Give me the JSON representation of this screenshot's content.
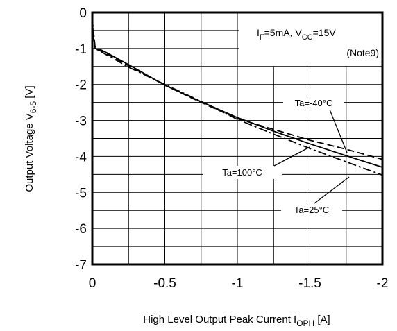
{
  "chart_data": {
    "type": "line",
    "xlim": [
      0,
      -2
    ],
    "ylim": [
      0,
      -7
    ],
    "x_ticks": [
      "0",
      "-0.5",
      "-1",
      "-1.5",
      "-2"
    ],
    "y_ticks": [
      "0",
      "-1",
      "-2",
      "-3",
      "-4",
      "-5",
      "-6",
      "-7"
    ],
    "xlabel": {
      "main": "High Level Output Peak Current I",
      "sub": "OPH",
      "unit": " [A]"
    },
    "ylabel": {
      "main": "Output Voltage V",
      "sub": "6-5",
      "unit": " [V]"
    },
    "grid": true,
    "annotation": {
      "line1": {
        "p1": "I",
        "s1": "F",
        "p2": "=5mA, V",
        "s2": "CC",
        "p3": "=15V"
      },
      "line2": "(Note9)"
    },
    "series": [
      {
        "name": "Ta=-40°C",
        "style": "dashed",
        "x": [
          0,
          -0.02,
          -0.1,
          -0.25,
          -0.5,
          -0.75,
          -1.0,
          -1.25,
          -1.5,
          -1.75,
          -2.0
        ],
        "y": [
          -0.2,
          -1.0,
          -1.15,
          -1.48,
          -2.02,
          -2.5,
          -2.95,
          -3.25,
          -3.55,
          -3.8,
          -4.08
        ]
      },
      {
        "name": "Ta=25°C",
        "style": "dashdot",
        "x": [
          0,
          -0.02,
          -0.1,
          -0.25,
          -0.5,
          -0.75,
          -1.0,
          -1.25,
          -1.5,
          -1.75,
          -2.0
        ],
        "y": [
          -0.3,
          -1.0,
          -1.18,
          -1.52,
          -2.0,
          -2.47,
          -2.97,
          -3.38,
          -3.78,
          -4.15,
          -4.52
        ]
      },
      {
        "name": "Ta=100°C",
        "style": "solid",
        "x": [
          0,
          -0.02,
          -0.05,
          -0.1,
          -0.25,
          -0.5,
          -0.75,
          -1.0,
          -1.25,
          -1.5,
          -1.75,
          -2.0
        ],
        "y": [
          -0.45,
          -1.0,
          -1.02,
          -1.12,
          -1.45,
          -2.02,
          -2.48,
          -2.92,
          -3.3,
          -3.65,
          -3.98,
          -4.3
        ]
      }
    ]
  }
}
